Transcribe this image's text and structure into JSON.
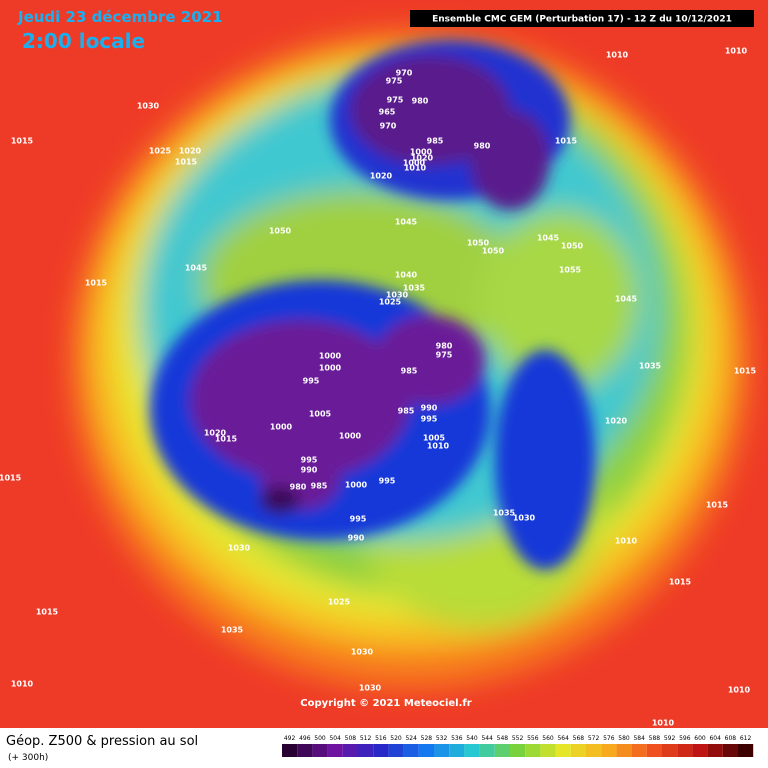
{
  "header": {
    "date": "Jeudi 23 décembre 2021",
    "time": "2:00 locale",
    "run": "Ensemble CMC GEM  (Perturbation 17)  -  12 Z du 10/12/2021"
  },
  "map": {
    "copyright": "Copyright © 2021 Meteociel.fr",
    "pressure_labels": [
      1030,
      1015,
      1025,
      1020,
      1015,
      970,
      975,
      975,
      980,
      965,
      970,
      985,
      980,
      1015,
      1000,
      1020,
      1000,
      1010,
      1020,
      1045,
      1050,
      1050,
      1050,
      1045,
      1050,
      1055,
      1045,
      1015,
      1040,
      1035,
      1030,
      1025,
      1045,
      1000,
      1000,
      995,
      980,
      975,
      985,
      1035,
      1015,
      1005,
      985,
      990,
      995,
      1000,
      1020,
      1015,
      1000,
      1020,
      1005,
      1010,
      995,
      990,
      985,
      980,
      1000,
      995,
      1015,
      1035,
      1030,
      1015,
      995,
      990,
      1010,
      1030,
      1015,
      1025,
      1015,
      1035,
      1030,
      1010,
      1030,
      1010,
      1010,
      1010,
      1010
    ]
  },
  "footer": {
    "title": "Géop. Z500 & pression au sol",
    "lead": "(+ 300h)",
    "scale": [
      492,
      496,
      500,
      504,
      508,
      512,
      516,
      520,
      524,
      528,
      532,
      536,
      540,
      544,
      548,
      552,
      556,
      560,
      564,
      568,
      572,
      576,
      580,
      584,
      588,
      592,
      596,
      600,
      604,
      608,
      612
    ]
  }
}
